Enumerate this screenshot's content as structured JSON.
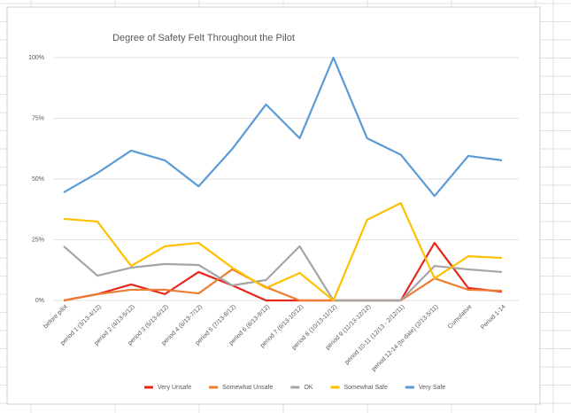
{
  "chart_data": {
    "type": "line",
    "title": "Degree of Safety Felt Throughout the Pilot",
    "categories": [
      "before pilot",
      "period 1 (3/13-4/12)",
      "period 2 (4/13-5/12)",
      "period 3 (5/13-6/12)",
      "period 4 (6/13-7/12)",
      "period 5 (7/13-8/12)",
      "period 6 (8/13-9/12)",
      "period 7 (9/13-10/12)",
      "period 8 (10/13-11/12)",
      "period 9 (11/13-12/12)",
      "period 10-11 (12/13 - 2/12/11)",
      "period 12-14 (to date) (2/13-5/11)",
      "Cumulative",
      "Period 1-14"
    ],
    "series": [
      {
        "name": "Very Unsafe",
        "color": "#e8261c",
        "values": [
          0,
          2.6,
          6.6,
          2.6,
          11.7,
          6.2,
          0,
          0,
          0,
          0,
          0,
          23.7,
          5.1,
          3.6
        ]
      },
      {
        "name": "Somewhat Unsafe",
        "color": "#ed7d31",
        "values": [
          0,
          2.6,
          4.4,
          4.4,
          2.9,
          12.8,
          5.5,
          0,
          0,
          0,
          0,
          9.1,
          4.4,
          4
        ]
      },
      {
        "name": "OK",
        "color": "#a5a5a5",
        "values": [
          22.3,
          10.2,
          13.5,
          15,
          14.6,
          6.2,
          8.4,
          22.3,
          0,
          0,
          0,
          14.2,
          12.8,
          11.7
        ]
      },
      {
        "name": "Somewhat Safe",
        "color": "#ffc000",
        "values": [
          33.6,
          32.5,
          14.2,
          22.3,
          23.7,
          13.5,
          5.1,
          11.3,
          0,
          33.2,
          40.1,
          9.1,
          18.2,
          17.5
        ]
      },
      {
        "name": "Very Safe",
        "color": "#5b9bd5",
        "values": [
          44.5,
          52.5,
          61.7,
          57.7,
          47,
          62.4,
          80.7,
          66.8,
          100,
          66.8,
          60,
          43,
          59.5,
          57.7
        ]
      }
    ],
    "ylim": [
      0,
      100
    ],
    "yticks": [
      {
        "value": 0,
        "label": "0%"
      },
      {
        "value": 25,
        "label": "25%"
      },
      {
        "value": 50,
        "label": "50%"
      },
      {
        "value": 75,
        "label": "75%"
      },
      {
        "value": 100,
        "label": "100%"
      }
    ],
    "grid": true,
    "legend": "bottom"
  }
}
